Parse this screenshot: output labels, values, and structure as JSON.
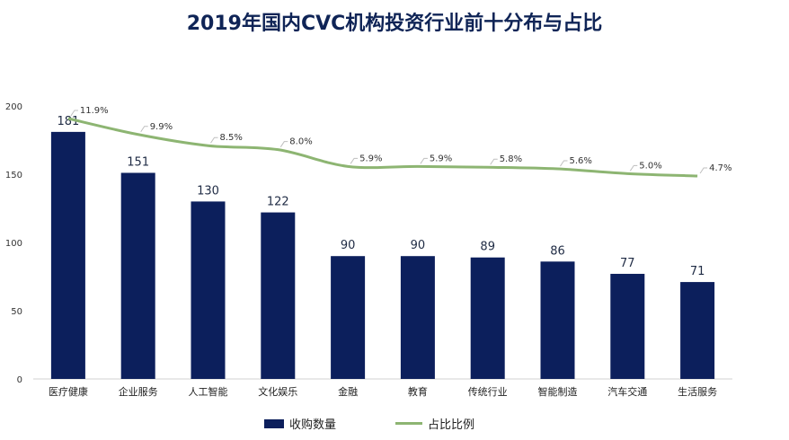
{
  "chart_data": {
    "type": "bar",
    "title": "2019年国内CVC机构投资行业前十分布与占比",
    "categories": [
      "医疗健康",
      "企业服务",
      "人工智能",
      "文化娱乐",
      "金融",
      "教育",
      "传统行业",
      "智能制造",
      "汽车交通",
      "生活服务"
    ],
    "series": [
      {
        "name": "收购数量",
        "type": "bar",
        "values": [
          181,
          151,
          130,
          122,
          90,
          90,
          89,
          86,
          77,
          71
        ],
        "color": "#0c1f5c"
      },
      {
        "name": "占比比例",
        "type": "line",
        "values": [
          11.9,
          9.9,
          8.5,
          8.0,
          5.9,
          5.9,
          5.8,
          5.6,
          5.0,
          4.7
        ],
        "labels": [
          "11.9%",
          "9.9%",
          "8.5%",
          "8.0%",
          "5.9%",
          "5.9%",
          "5.8%",
          "5.6%",
          "5.0%",
          "4.7%"
        ],
        "color": "#8db572"
      }
    ],
    "yticks": [
      "0",
      "50",
      "100",
      "150",
      "200"
    ],
    "ylim": [
      0,
      200
    ],
    "legend": [
      "收购数量",
      "占比比例"
    ],
    "legend_position": "bottom"
  }
}
